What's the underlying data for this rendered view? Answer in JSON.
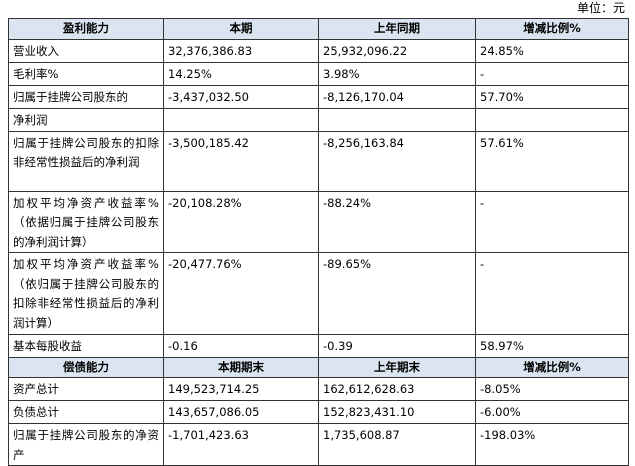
{
  "unit": "单位：元",
  "sections": [
    {
      "header": [
        "盈利能力",
        "本期",
        "上年同期",
        "增减比例%"
      ],
      "rows": [
        [
          "营业收入",
          "32,376,386.83",
          "25,932,096.22",
          "24.85%"
        ],
        [
          "毛利率%",
          "14.25%",
          "3.98%",
          "-"
        ],
        [
          "归属于挂牌公司股东的",
          "-3,437,032.50",
          "-8,126,170.04",
          "57.70%"
        ],
        [
          "净利润"
        ],
        [
          "归属于挂牌公司股东的扣除非经常性损益后的净利润",
          "-3,500,185.42",
          "-8,256,163.84",
          "57.61%"
        ],
        [
          "加权平均净资产收益率%（依据归属于挂牌公司股东的净利润计算）",
          "-20,108.28%",
          "-88.24%",
          "-"
        ],
        [
          "加权平均净资产收益率%（依归属于挂牌公司股东的扣除非经常性损益后的净利润计算）",
          "-20,477.76%",
          "-89.65%",
          "-"
        ],
        [
          "基本每股收益",
          "-0.16",
          "-0.39",
          "58.97%"
        ]
      ]
    },
    {
      "header": [
        "偿债能力",
        "本期期末",
        "上年期末",
        "增减比例%"
      ],
      "rows": [
        [
          "资产总计",
          "149,523,714.25",
          "162,612,628.63",
          "-8.05%"
        ],
        [
          "负债总计",
          "143,657,086.05",
          "152,823,431.10",
          "-6.00%"
        ],
        [
          "归属于挂牌公司股东的净资产",
          "-1,701,423.63",
          "1,735,608.87",
          "-198.03%"
        ]
      ]
    }
  ]
}
